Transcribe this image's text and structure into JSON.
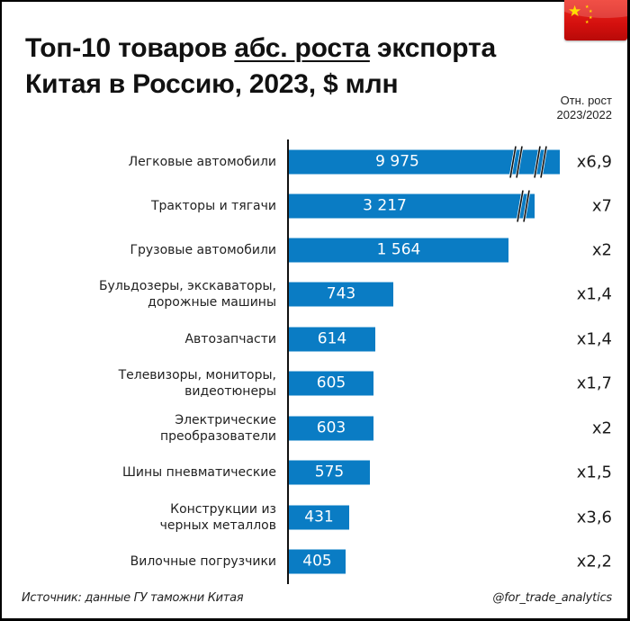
{
  "header": {
    "title_line1_a": "Топ-10 товаров ",
    "title_line1_underlined": "абс. роста",
    "title_line1_b": " экспорта",
    "title_line2": "Китая в Россию, 2023, $ млн",
    "flag": "china-flag"
  },
  "column_header": {
    "line1": "Отн. рост",
    "line2": "2023/2022"
  },
  "colors": {
    "bar": "#0a7cc4",
    "axis": "#111111",
    "flag_red": "#de2910",
    "flag_star": "#ffde00"
  },
  "rows": [
    {
      "label_l1": "Легковые автомобили",
      "label_l2": "",
      "value_label": "9 975",
      "ratio": "x6,9",
      "axis_break": true
    },
    {
      "label_l1": "Тракторы и тягачи",
      "label_l2": "",
      "value_label": "3 217",
      "ratio": "x7",
      "axis_break": true
    },
    {
      "label_l1": "Грузовые автомобили",
      "label_l2": "",
      "value_label": "1 564",
      "ratio": "x2",
      "axis_break": false
    },
    {
      "label_l1": "Бульдозеры, экскаваторы,",
      "label_l2": "дорожные машины",
      "value_label": "743",
      "ratio": "x1,4",
      "axis_break": false
    },
    {
      "label_l1": "Автозапчасти",
      "label_l2": "",
      "value_label": "614",
      "ratio": "x1,4",
      "axis_break": false
    },
    {
      "label_l1": "Телевизоры, мониторы,",
      "label_l2": "видеотюнеры",
      "value_label": "605",
      "ratio": "x1,7",
      "axis_break": false
    },
    {
      "label_l1": "Электрические",
      "label_l2": "преобразователи",
      "value_label": "603",
      "ratio": "x2",
      "axis_break": false
    },
    {
      "label_l1": "Шины пневматические",
      "label_l2": "",
      "value_label": "575",
      "ratio": "x1,5",
      "axis_break": false
    },
    {
      "label_l1": "Конструкции из",
      "label_l2": "черных металлов",
      "value_label": "431",
      "ratio": "x3,6",
      "axis_break": false
    },
    {
      "label_l1": "Вилочные погрузчики",
      "label_l2": "",
      "value_label": "405",
      "ratio": "x2,2",
      "axis_break": false
    }
  ],
  "footer": {
    "source": "Источник: данные ГУ таможни Китая",
    "handle": "@for_trade_analytics"
  },
  "chart_data": {
    "type": "bar",
    "orientation": "horizontal",
    "title": "Топ-10 товаров абс. роста экспорта Китая в Россию, 2023, $ млн",
    "xlabel": "",
    "ylabel": "",
    "grid": false,
    "legend": null,
    "categories": [
      "Легковые автомобили",
      "Тракторы и тягачи",
      "Грузовые автомобили",
      "Бульдозеры, экскаваторы, дорожные машины",
      "Автозапчасти",
      "Телевизоры, мониторы, видеотюнеры",
      "Электрические преобразователи",
      "Шины пневматические",
      "Конструкции из черных металлов",
      "Вилочные погрузчики"
    ],
    "series": [
      {
        "name": "Абс. рост экспорта 2023, $ млн",
        "values": [
          9975,
          3217,
          1564,
          743,
          614,
          605,
          603,
          575,
          431,
          405
        ]
      },
      {
        "name": "Отн. рост 2023/2022",
        "values": [
          6.9,
          7,
          2,
          1.4,
          1.4,
          1.7,
          2,
          1.5,
          3.6,
          2.2
        ]
      }
    ],
    "annotations": [
      "Axis break marks on bars 'Легковые автомобили' and 'Тракторы и тягачи'"
    ],
    "source": "Источник: данные ГУ таможни Китая"
  }
}
